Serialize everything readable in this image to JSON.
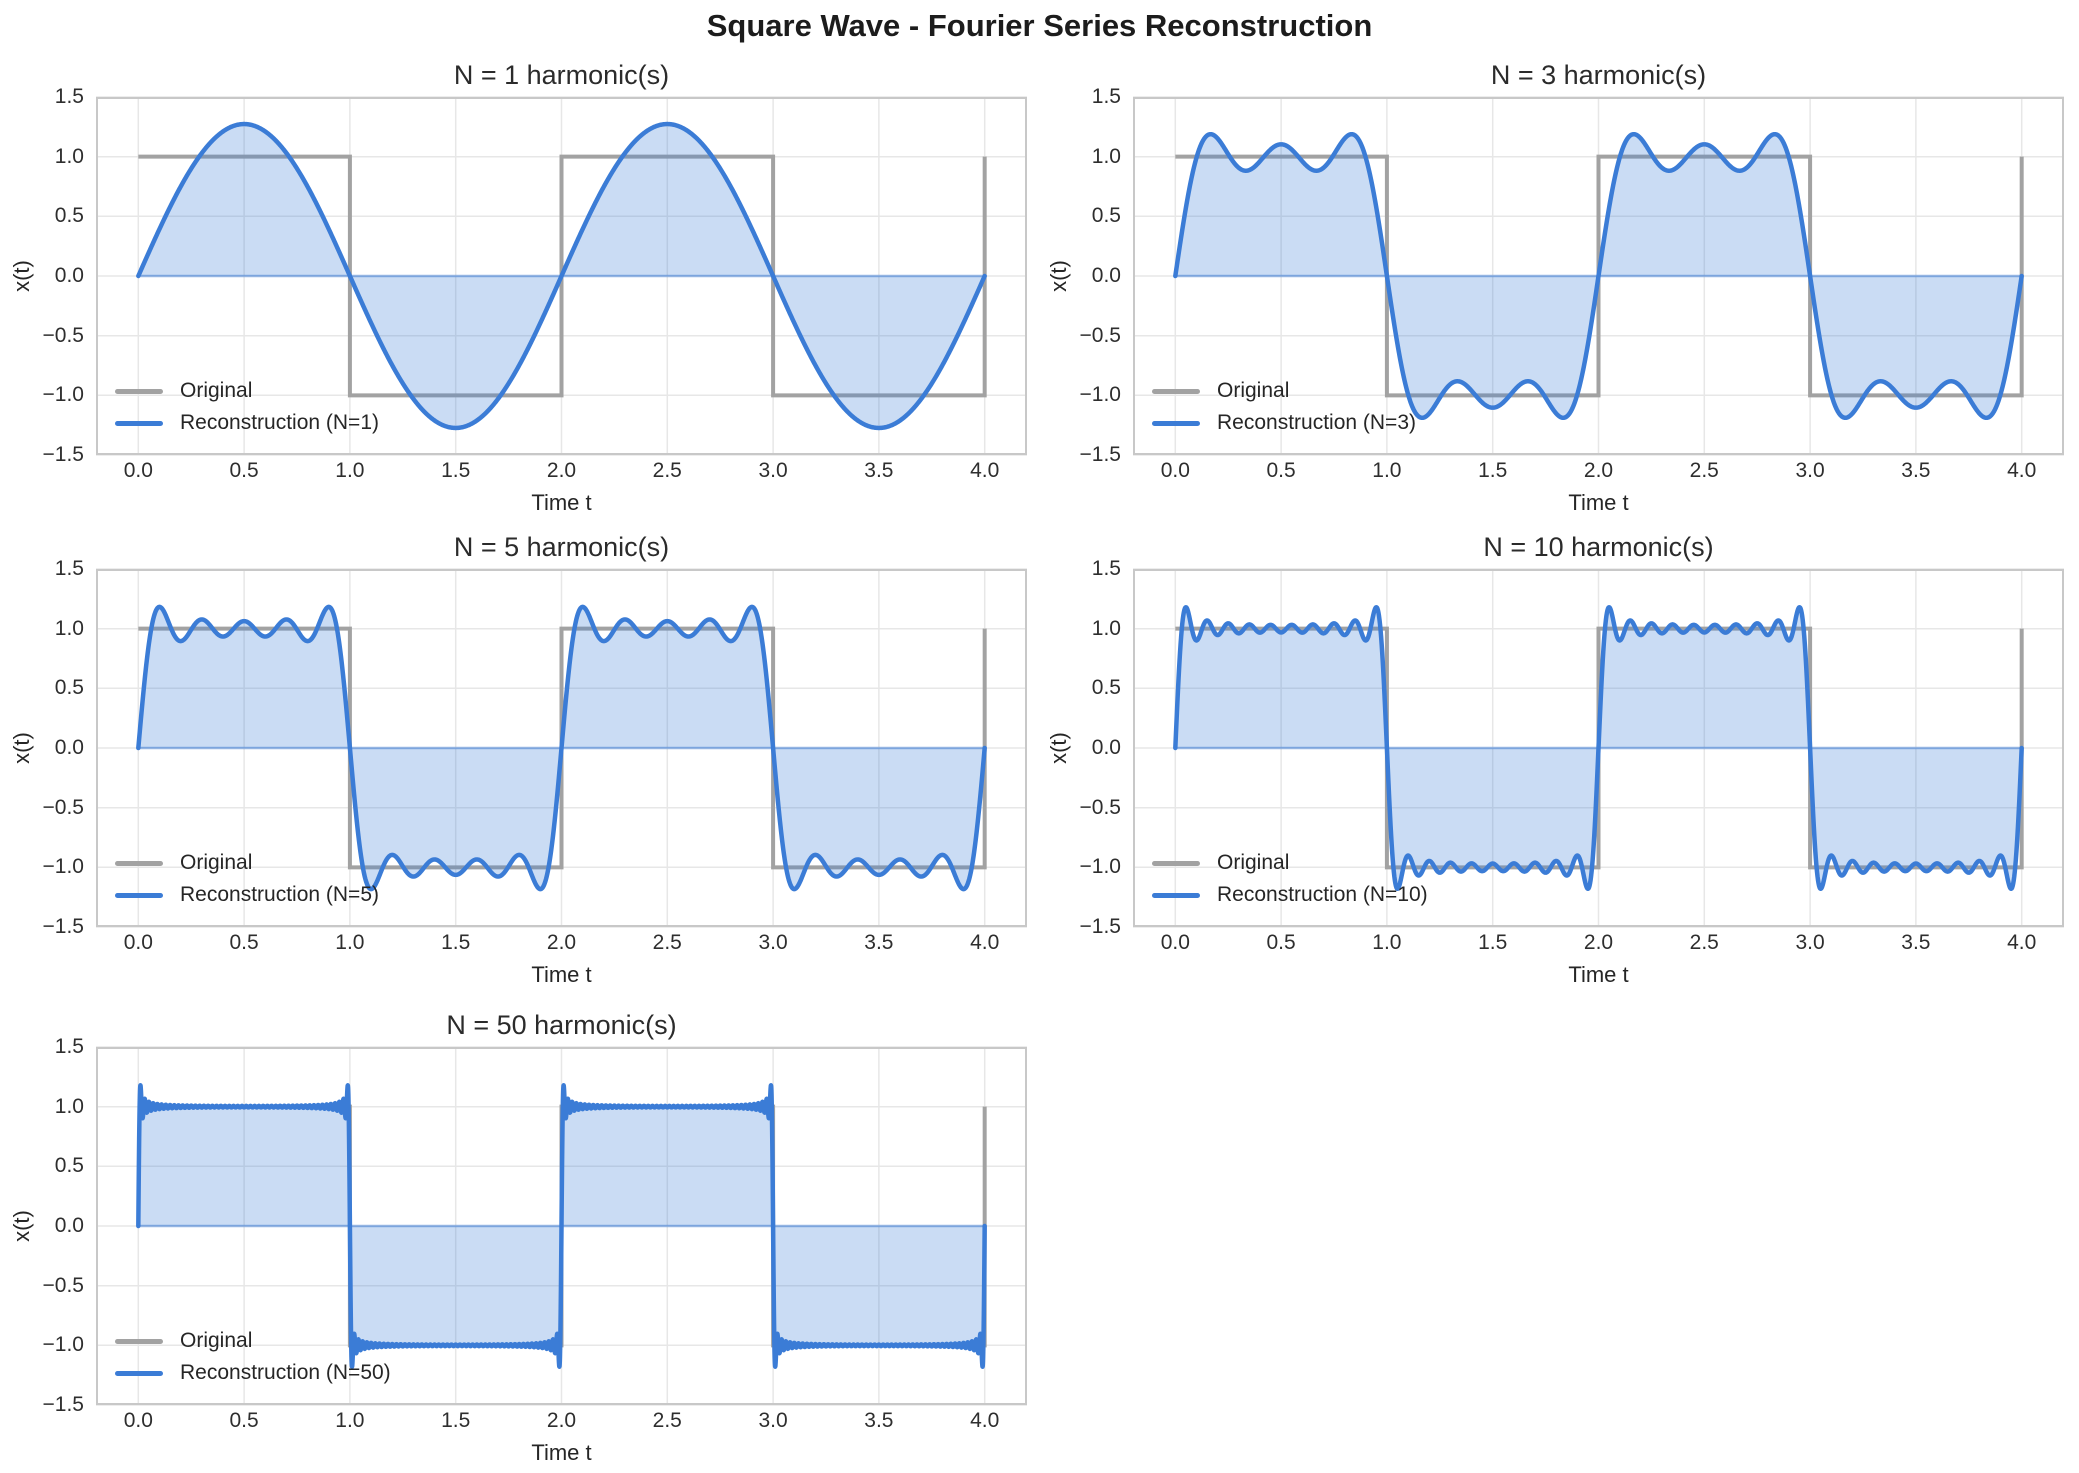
{
  "figure": {
    "suptitle": "Square Wave - Fourier Series Reconstruction"
  },
  "chart_data": {
    "type": "line",
    "title": "Square Wave - Fourier Series Reconstruction",
    "layout": "5 subplots in 3 rows x 2 columns grid (last cell empty)",
    "axes": {
      "x_label": "Time t",
      "y_label": "x(t)",
      "x_range": [
        -0.2,
        4.2
      ],
      "y_range": [
        -1.5,
        1.5
      ],
      "x_tick_labels": [
        "0.0",
        "0.5",
        "1.0",
        "1.5",
        "2.0",
        "2.5",
        "3.0",
        "3.5",
        "4.0"
      ],
      "x_tick_values": [
        0,
        0.5,
        1,
        1.5,
        2,
        2.5,
        3,
        3.5,
        4
      ],
      "y_tick_labels": [
        "1.5",
        "1.0",
        "0.5",
        "0.0",
        "−0.5",
        "−1.0",
        "−1.5"
      ],
      "y_tick_values": [
        1.5,
        1,
        0.5,
        0,
        -0.5,
        -1,
        -1.5
      ],
      "grid": true,
      "legend_position": "lower left"
    },
    "original_square_wave": {
      "description": "Square wave, period 2: x(t)=+1 on [0,1), x(t)=-1 on [1,2)",
      "points": [
        [
          0,
          1
        ],
        [
          1,
          1
        ],
        [
          1,
          -1
        ],
        [
          2,
          -1
        ],
        [
          2,
          1
        ],
        [
          3,
          1
        ],
        [
          3,
          -1
        ],
        [
          4,
          -1
        ],
        [
          4,
          1
        ]
      ]
    },
    "reconstruction_formula": "x_N(t) = (4/π) · Σ k=1..N sin((2k−1)πt)/(2k−1)",
    "t_domain": [
      0,
      4
    ],
    "fundamental_period": 2,
    "n1_peak_value": 1.273,
    "fill_between": "reconstruction curve and y=0",
    "panels": [
      {
        "title": "N = 1 harmonic(s)",
        "n_harmonics": 1,
        "legend": {
          "original": "Original",
          "reconstruction": "Reconstruction (N=1)"
        }
      },
      {
        "title": "N = 3 harmonic(s)",
        "n_harmonics": 3,
        "legend": {
          "original": "Original",
          "reconstruction": "Reconstruction (N=3)"
        }
      },
      {
        "title": "N = 5 harmonic(s)",
        "n_harmonics": 5,
        "legend": {
          "original": "Original",
          "reconstruction": "Reconstruction (N=5)"
        }
      },
      {
        "title": "N = 10 harmonic(s)",
        "n_harmonics": 10,
        "legend": {
          "original": "Original",
          "reconstruction": "Reconstruction (N=10)"
        }
      },
      {
        "title": "N = 50 harmonic(s)",
        "n_harmonics": 50,
        "legend": {
          "original": "Original",
          "reconstruction": "Reconstruction (N=50)"
        }
      }
    ],
    "colors": {
      "original_line": "#a2a2a2",
      "reconstruction_line": "#3b7cd6",
      "fill": "rgba(59,124,214,0.27)",
      "zero_line": "rgba(59,124,214,0.5)",
      "grid": "#e7e7e7",
      "spine": "#c8c8c8",
      "text": "#262626"
    }
  }
}
